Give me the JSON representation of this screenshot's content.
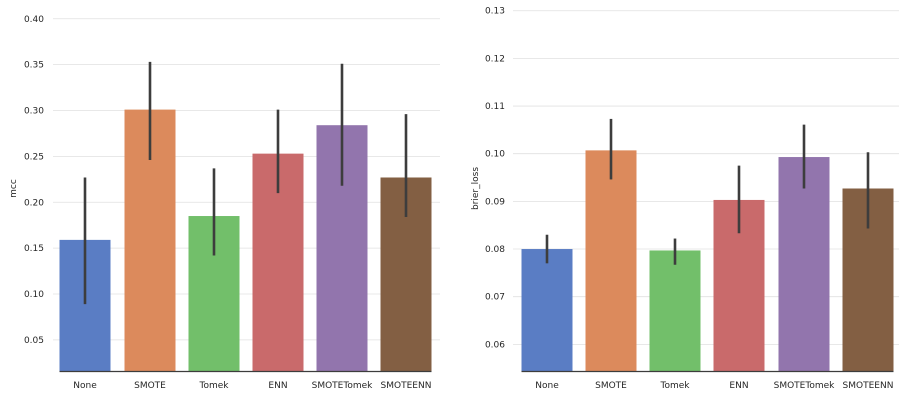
{
  "chart_data": [
    {
      "type": "bar",
      "title": "",
      "xlabel": "",
      "ylabel": "mcc",
      "ylim": [
        0.015,
        0.415
      ],
      "yticks": [
        0.05,
        0.1,
        0.15,
        0.2,
        0.25,
        0.3,
        0.35,
        0.4
      ],
      "ytick_labels": [
        "0.05",
        "0.10",
        "0.15",
        "0.20",
        "0.25",
        "0.30",
        "0.35",
        "0.40"
      ],
      "categories": [
        "None",
        "SMOTE",
        "Tomek",
        "ENN",
        "SMOTETomek",
        "SMOTEENN"
      ],
      "values": [
        0.159,
        0.301,
        0.185,
        0.253,
        0.284,
        0.227
      ],
      "err_low": [
        0.089,
        0.246,
        0.142,
        0.21,
        0.218,
        0.184
      ],
      "err_high": [
        0.227,
        0.353,
        0.237,
        0.301,
        0.351,
        0.296
      ],
      "colors": [
        "#5a7dc4",
        "#dc8a5c",
        "#72bf6a",
        "#c96a6b",
        "#9275ad",
        "#835f43"
      ],
      "grid": true
    },
    {
      "type": "bar",
      "title": "",
      "xlabel": "",
      "ylabel": "brier_loss",
      "ylim": [
        0.0542,
        0.1312
      ],
      "yticks": [
        0.06,
        0.07,
        0.08,
        0.09,
        0.1,
        0.11,
        0.12,
        0.13
      ],
      "ytick_labels": [
        "0.06",
        "0.07",
        "0.08",
        "0.09",
        "0.10",
        "0.11",
        "0.12",
        "0.13"
      ],
      "categories": [
        "None",
        "SMOTE",
        "Tomek",
        "ENN",
        "SMOTETomek",
        "SMOTEENN"
      ],
      "values": [
        0.08,
        0.1007,
        0.0797,
        0.0903,
        0.0993,
        0.0927
      ],
      "err_low": [
        0.077,
        0.0946,
        0.0767,
        0.0833,
        0.0927,
        0.0843
      ],
      "err_high": [
        0.083,
        0.1073,
        0.0822,
        0.0975,
        0.1061,
        0.1003
      ],
      "colors": [
        "#5a7dc4",
        "#dc8a5c",
        "#72bf6a",
        "#c96a6b",
        "#9275ad",
        "#835f43"
      ],
      "grid": true
    }
  ]
}
